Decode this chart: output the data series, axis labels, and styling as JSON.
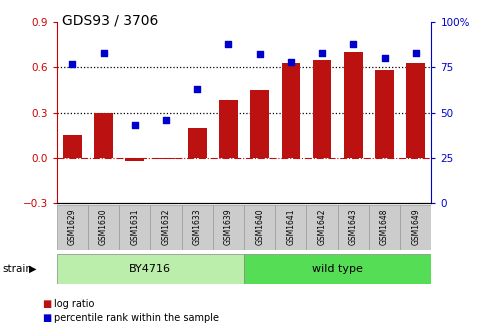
{
  "title": "GDS93 / 3706",
  "samples": [
    "GSM1629",
    "GSM1630",
    "GSM1631",
    "GSM1632",
    "GSM1633",
    "GSM1639",
    "GSM1640",
    "GSM1641",
    "GSM1642",
    "GSM1643",
    "GSM1648",
    "GSM1649"
  ],
  "log_ratio": [
    0.15,
    0.3,
    -0.02,
    -0.01,
    0.2,
    0.38,
    0.45,
    0.63,
    0.65,
    0.7,
    0.58,
    0.63
  ],
  "percentile": [
    77,
    83,
    43,
    46,
    63,
    88,
    82,
    78,
    83,
    88,
    80,
    83
  ],
  "bar_color": "#bb1111",
  "dot_color": "#0000cc",
  "ylim": [
    -0.3,
    0.9
  ],
  "y2lim": [
    0,
    100
  ],
  "yticks": [
    -0.3,
    0.0,
    0.3,
    0.6,
    0.9
  ],
  "y2ticks": [
    0,
    25,
    50,
    75,
    100
  ],
  "hlines": [
    0.3,
    0.6
  ],
  "zero_line": 0.0,
  "groups": [
    {
      "label": "BY4716",
      "start": 0,
      "end": 6,
      "color": "#bbeeaa"
    },
    {
      "label": "wild type",
      "start": 6,
      "end": 12,
      "color": "#55dd55"
    }
  ],
  "strain_label": "strain",
  "legend": [
    {
      "label": "log ratio",
      "color": "#bb1111"
    },
    {
      "label": "percentile rank within the sample",
      "color": "#0000cc"
    }
  ],
  "bg_color": "#ffffff",
  "tick_label_color_left": "#cc0000",
  "tick_label_color_right": "#0000cc",
  "bar_width": 0.6,
  "label_box_color": "#cccccc",
  "label_box_edge": "#999999"
}
